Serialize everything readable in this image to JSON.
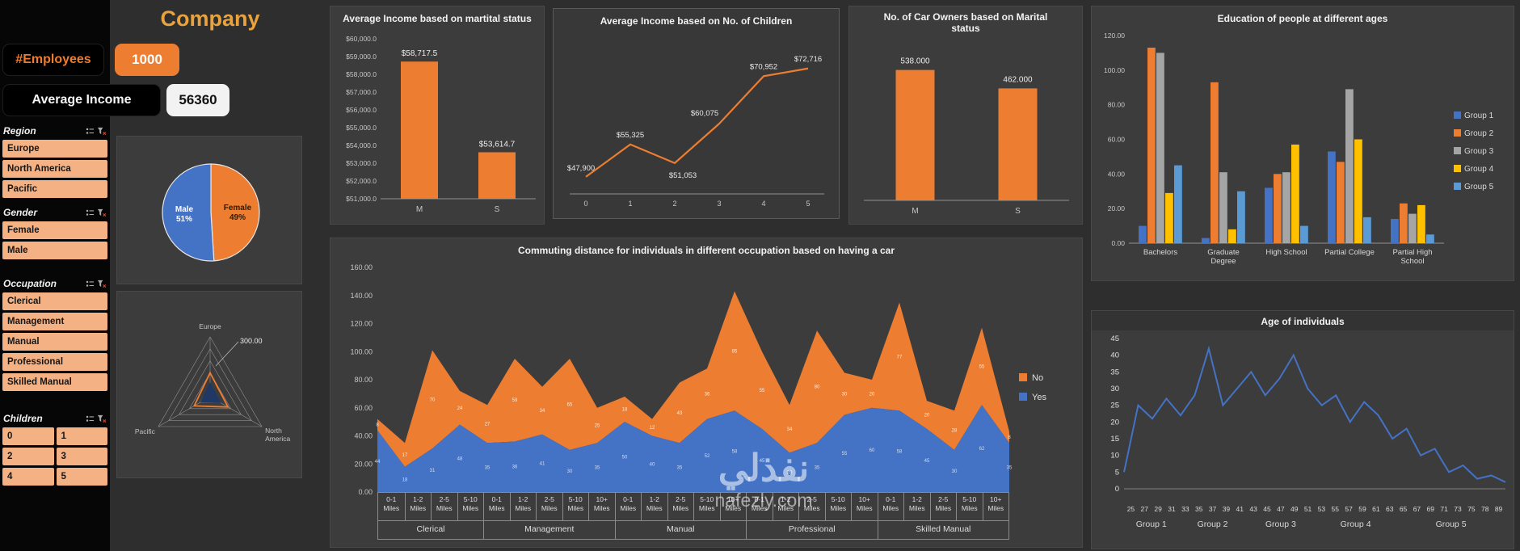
{
  "header": {
    "title": "Company"
  },
  "kpis": [
    {
      "label": "#Employees",
      "value": "1000"
    },
    {
      "label": "Average Income",
      "value": "56360"
    }
  ],
  "sidebar": {
    "slicers": [
      {
        "title": "Region",
        "columns": 1,
        "items": [
          "Europe",
          "North America",
          "Pacific"
        ]
      },
      {
        "title": "Gender",
        "columns": 1,
        "items": [
          "Female",
          "Male"
        ]
      },
      {
        "title": "Occupation",
        "columns": 1,
        "items": [
          "Clerical",
          "Management",
          "Manual",
          "Professional",
          "Skilled Manual"
        ]
      },
      {
        "title": "Children",
        "columns": 2,
        "items": [
          "0",
          "1",
          "2",
          "3",
          "4",
          "5"
        ]
      }
    ]
  },
  "watermark": {
    "arabic": "نفذلي",
    "domain": "nafezly.com"
  },
  "colors": {
    "accent_orange": "#ED7D31",
    "blue": "#4472C4",
    "gray": "#A5A5A5",
    "yellow": "#FFC000",
    "light_blue": "#5B9BD5",
    "slicer_item": "#F4B183",
    "panel": "#3C3C3C",
    "background": "#2E2E2E",
    "title_orange": "#E8A33D"
  },
  "chart_data": [
    {
      "id": "income_by_marital_status",
      "type": "bar",
      "title": "Average Income based on martital status",
      "categories": [
        "M",
        "S"
      ],
      "values": [
        58717.5,
        53614.7
      ],
      "value_labels": [
        "$58,717.5",
        "$53,614.7"
      ],
      "ylim": [
        51000,
        60000
      ],
      "ytick_labels": [
        "$51,000.0",
        "$52,000.0",
        "$53,000.0",
        "$54,000.0",
        "$55,000.0",
        "$56,000.0",
        "$57,000.0",
        "$58,000.0",
        "$59,000.0",
        "$60,000.0"
      ],
      "bar_color": "#ED7D31"
    },
    {
      "id": "income_by_children",
      "type": "line",
      "title": "Average Income based on No. of Children",
      "categories": [
        "0",
        "1",
        "2",
        "3",
        "4",
        "5"
      ],
      "values": [
        47900,
        55325,
        51053,
        60075,
        70952,
        72716
      ],
      "value_labels": [
        "$47,900",
        "$55,325",
        "$51,053",
        "$60,075",
        "$70,952",
        "$72,716"
      ],
      "ylim": [
        44000,
        76000
      ],
      "line_color": "#ED7D31"
    },
    {
      "id": "car_owners_by_marital_status",
      "type": "bar",
      "title": "No. of Car Owners based on Marital status",
      "categories": [
        "M",
        "S"
      ],
      "values": [
        538,
        462
      ],
      "value_labels": [
        "538.000",
        "462.000"
      ],
      "ylim": [
        0,
        600
      ],
      "bar_color": "#ED7D31"
    },
    {
      "id": "education_by_age",
      "type": "bar",
      "title": "Education of people at different ages",
      "categories": [
        "Bachelors",
        "Graduate Degree",
        "High School",
        "Partial College",
        "Partial High School"
      ],
      "category_lines": [
        [
          "Bachelors"
        ],
        [
          "Graduate",
          "Degree"
        ],
        [
          "High School"
        ],
        [
          "Partial College"
        ],
        [
          "Partial High",
          "School"
        ]
      ],
      "series": [
        {
          "name": "Group 1",
          "color": "#4472C4",
          "values": [
            10,
            3,
            32,
            53,
            14
          ]
        },
        {
          "name": "Group 2",
          "color": "#ED7D31",
          "values": [
            113,
            93,
            40,
            47,
            23
          ]
        },
        {
          "name": "Group 3",
          "color": "#A5A5A5",
          "values": [
            110,
            41,
            41,
            89,
            17
          ]
        },
        {
          "name": "Group 4",
          "color": "#FFC000",
          "values": [
            29,
            8,
            57,
            60,
            22
          ]
        },
        {
          "name": "Group 5",
          "color": "#5B9BD5",
          "values": [
            45,
            30,
            10,
            15,
            5
          ]
        }
      ],
      "ylim": [
        0,
        120
      ],
      "ytick_labels": [
        "0.00",
        "20.00",
        "40.00",
        "60.00",
        "80.00",
        "100.00",
        "120.00"
      ],
      "legend_position": "right"
    },
    {
      "id": "commuting_distance",
      "type": "area",
      "title": "Commuting distance for individuals in different occupation based on having a car",
      "x_cells": [
        "0-1",
        "1-2",
        "2-5",
        "5-10",
        "0-1",
        "1-2",
        "2-5",
        "5-10",
        "10+",
        "0-1",
        "1-2",
        "2-5",
        "5-10",
        "10+",
        "0-1",
        "1-2",
        "2-5",
        "5-10",
        "10+",
        "0-1",
        "1-2",
        "2-5",
        "5-10",
        "10+"
      ],
      "x_cell_line2": "Miles",
      "group_labels": [
        "Clerical",
        "Management",
        "Manual",
        "Professional",
        "Skilled Manual"
      ],
      "group_spans": [
        4,
        5,
        5,
        5,
        5
      ],
      "series": [
        {
          "name": "Yes",
          "color": "#4472C4",
          "values": [
            44,
            18,
            31,
            48,
            35,
            36,
            41,
            30,
            35,
            50,
            40,
            35,
            52,
            58,
            45,
            28,
            35,
            55,
            60,
            58,
            45,
            30,
            62,
            35
          ]
        },
        {
          "name": "No",
          "color": "#ED7D31",
          "values": [
            8,
            17,
            70,
            24,
            27,
            59,
            34,
            65,
            25,
            18,
            12,
            43,
            36,
            85,
            55,
            34,
            80,
            30,
            20,
            77,
            20,
            28,
            55,
            8
          ]
        }
      ],
      "ylim": [
        0,
        160
      ],
      "ytick_labels": [
        "0.00",
        "20.00",
        "40.00",
        "60.00",
        "80.00",
        "100.00",
        "120.00",
        "140.00",
        "160.00"
      ],
      "legend_position": "right"
    },
    {
      "id": "gender_share",
      "type": "pie",
      "slices": [
        {
          "label": "Female",
          "pct": 49,
          "color": "#ED7D31",
          "text_color": "#2d1b07"
        },
        {
          "label": "Male",
          "pct": 51,
          "color": "#4472C4",
          "text_color": "#ffffff"
        }
      ]
    },
    {
      "id": "region_radar",
      "type": "radar",
      "axes": [
        "Europe",
        "North America",
        "Pacific"
      ],
      "max": 750,
      "rings": 5,
      "annotation": "300.00",
      "series": [
        {
          "color": "#ED7D31",
          "values": [
            300,
            260,
            230
          ]
        },
        {
          "color": "#1F3864",
          "fill": "#1F3864",
          "values": [
            160,
            140,
            130
          ]
        }
      ]
    },
    {
      "id": "age_of_individuals",
      "type": "line",
      "title": "Age of individuals",
      "categories": [
        "25",
        "27",
        "29",
        "31",
        "33",
        "35",
        "37",
        "39",
        "41",
        "43",
        "45",
        "47",
        "49",
        "51",
        "53",
        "55",
        "57",
        "59",
        "61",
        "63",
        "65",
        "67",
        "69",
        "71",
        "73",
        "75",
        "78",
        "89"
      ],
      "values": [
        5,
        25,
        21,
        27,
        22,
        28,
        42,
        25,
        30,
        35,
        28,
        33,
        40,
        30,
        25,
        28,
        20,
        26,
        22,
        15,
        18,
        10,
        12,
        5,
        7,
        3,
        4,
        2
      ],
      "group_labels": [
        "Group 1",
        "Group 2",
        "Group 3",
        "Group 4",
        "Group 5"
      ],
      "group_spans": [
        4,
        5,
        5,
        6,
        8
      ],
      "ylim": [
        0,
        45
      ],
      "ytick_labels": [
        "0",
        "5",
        "10",
        "15",
        "20",
        "25",
        "30",
        "35",
        "40",
        "45"
      ],
      "line_color": "#4472C4"
    }
  ]
}
